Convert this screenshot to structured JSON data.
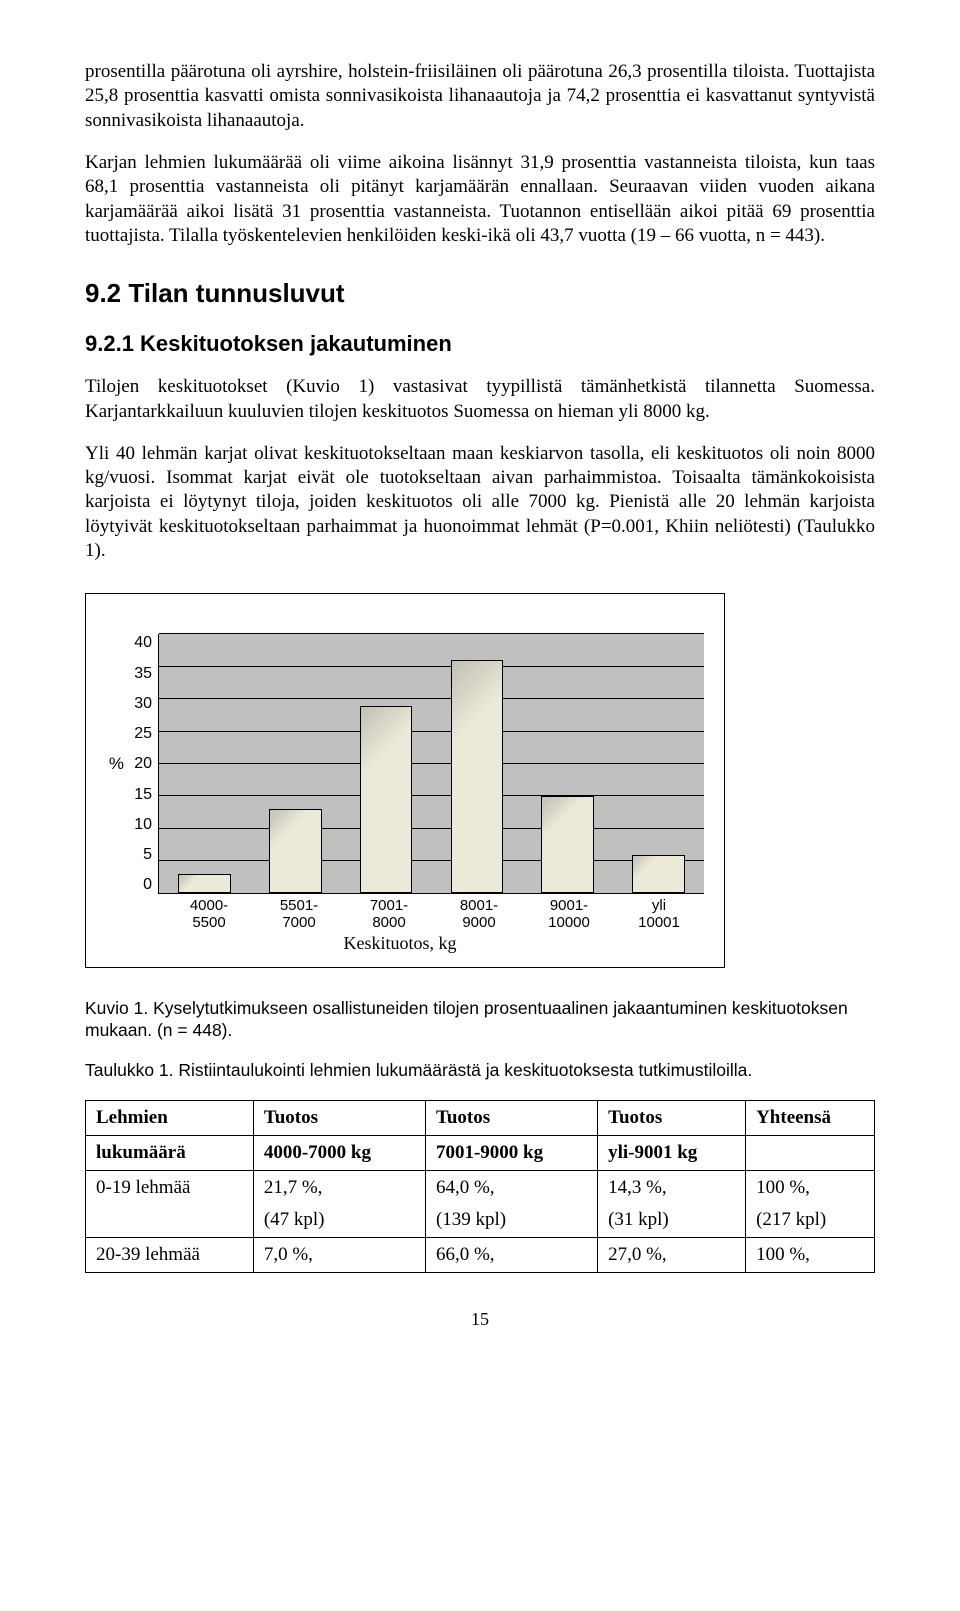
{
  "paragraphs": {
    "p1": "prosentilla päärotuna oli ayrshire, holstein-friisiläinen oli päärotuna 26,3 prosentilla tiloista. Tuottajista 25,8 prosenttia kasvatti omista sonnivasikoista lihanaautoja ja 74,2 prosenttia ei kasvattanut syntyvistä sonnivasikoista lihanaautoja.",
    "p2": "Karjan lehmien lukumäärää oli viime aikoina lisännyt 31,9 prosenttia vastanneista tiloista, kun taas 68,1 prosenttia vastanneista oli pitänyt karjamäärän ennallaan. Seuraavan viiden vuoden aikana karjamäärää aikoi lisätä 31 prosenttia vastanneista. Tuotannon entisellään aikoi pitää 69 prosenttia tuottajista. Tilalla työskentelevien henkilöiden keski-ikä oli 43,7 vuotta (19 – 66 vuotta, n = 443).",
    "p3": "Tilojen keskituotokset (Kuvio 1) vastasivat tyypillistä tämänhetkistä tilannetta Suomessa. Karjantarkkailuun kuuluvien tilojen keskituotos Suomessa on hieman yli 8000 kg.",
    "p4": "Yli 40 lehmän karjat olivat keskituotokseltaan maan keskiarvon tasolla, eli keskituotos oli noin 8000 kg/vuosi. Isommat karjat eivät ole tuotokseltaan aivan parhaimmistoa. Toisaalta tämänkokoisista karjoista ei löytynyt tiloja, joiden keskituotos oli alle 7000 kg. Pienistä alle 20 lehmän karjoista löytyivät keskituotokseltaan parhaimmat ja huonoimmat lehmät (P=0.001, Khiin neliötesti) (Taulukko 1)."
  },
  "headings": {
    "h2": "9.2  Tilan tunnusluvut",
    "h3": "9.2.1  Keskituotoksen jakautuminen"
  },
  "chart": {
    "type": "bar",
    "y_label": "%",
    "y_max": 40,
    "y_tick_step": 5,
    "y_ticks": [
      "40",
      "35",
      "30",
      "25",
      "20",
      "15",
      "10",
      "5",
      "0"
    ],
    "categories": [
      "4000-\n5500",
      "5501-\n7000",
      "7001-\n8000",
      "8001-\n9000",
      "9001-\n10000",
      "yli\n10001"
    ],
    "values": [
      3,
      13,
      29,
      36,
      15,
      6
    ],
    "bar_fill": "#ece9d8",
    "plot_bg": "#c0c0c0",
    "border_color": "#000000",
    "x_axis_label": "Keskituotos, kg"
  },
  "captions": {
    "fig": "Kuvio 1. Kyselytutkimukseen osallistuneiden tilojen prosentuaalinen jakaantuminen keskituotoksen mukaan. (n = 448).",
    "tbl": "Taulukko 1. Ristiintaulukointi lehmien lukumäärästä ja keskituotoksesta tutkimustiloilla."
  },
  "table": {
    "head1": [
      "Lehmien",
      "Tuotos",
      "Tuotos",
      "Tuotos",
      "Yhteensä"
    ],
    "head2": [
      "lukumäärä",
      "4000-7000 kg",
      "7001-9000 kg",
      "yli-9001 kg",
      ""
    ],
    "rows": [
      {
        "label": "0-19 lehmää",
        "c1a": "21,7 %,",
        "c1b": "(47 kpl)",
        "c2a": "64,0 %,",
        "c2b": "(139 kpl)",
        "c3a": "14,3 %,",
        "c3b": "(31 kpl)",
        "c4a": "100 %,",
        "c4b": "(217 kpl)"
      },
      {
        "label": "20-39 lehmää",
        "c1a": "7,0 %,",
        "c1b": "",
        "c2a": "66,0 %,",
        "c2b": "",
        "c3a": "27,0 %,",
        "c3b": "",
        "c4a": "100 %,",
        "c4b": ""
      }
    ]
  },
  "page_number": "15"
}
